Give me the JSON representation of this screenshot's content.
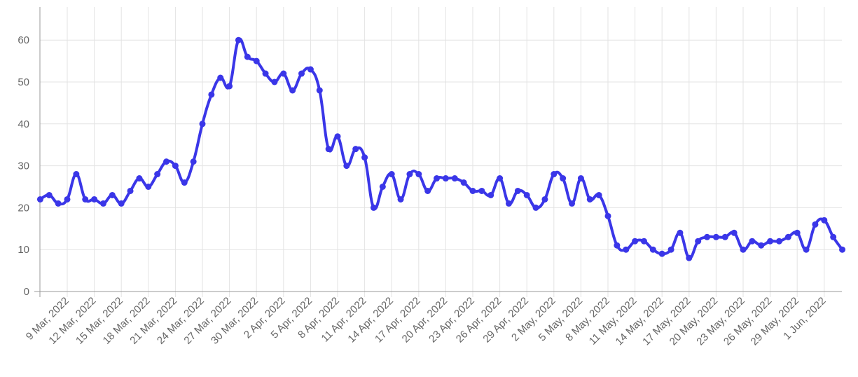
{
  "chart_data": {
    "type": "line",
    "title": "",
    "xlabel": "",
    "ylabel": "",
    "ylim": [
      0,
      65
    ],
    "grid": true,
    "legend": "none",
    "y_ticks": [
      0,
      10,
      20,
      30,
      40,
      50,
      60
    ],
    "x_tick_labels": [
      "9 Mar, 2022",
      "12 Mar, 2022",
      "15 Mar, 2022",
      "18 Mar, 2022",
      "21 Mar, 2022",
      "24 Mar, 2022",
      "27 Mar, 2022",
      "30 Mar, 2022",
      "2 Apr, 2022",
      "5 Apr, 2022",
      "8 Apr, 2022",
      "11 Apr, 2022",
      "14 Apr, 2022",
      "17 Apr, 2022",
      "20 Apr, 2022",
      "23 Apr, 2022",
      "26 Apr, 2022",
      "29 Apr, 2022",
      "2 May, 2022",
      "5 May, 2022",
      "8 May, 2022",
      "11 May, 2022",
      "14 May, 2022",
      "17 May, 2022",
      "20 May, 2022",
      "23 May, 2022",
      "26 May, 2022",
      "29 May, 2022",
      "1 Jun, 2022"
    ],
    "x_start": "6 Mar, 2022",
    "x_end": "4 Jun, 2022",
    "line_color": "#3a36e8",
    "series": [
      {
        "name": "",
        "values": [
          22,
          23,
          21,
          22,
          28,
          22,
          22,
          21,
          23,
          21,
          24,
          27,
          25,
          28,
          31,
          30,
          26,
          31,
          40,
          47,
          51,
          49,
          60,
          56,
          55,
          52,
          50,
          52,
          48,
          52,
          53,
          48,
          34,
          37,
          30,
          34,
          32,
          20,
          25,
          28,
          22,
          28,
          28,
          24,
          27,
          27,
          27,
          26,
          24,
          24,
          23,
          27,
          21,
          24,
          23,
          20,
          22,
          28,
          27,
          21,
          27,
          22,
          23,
          18,
          11,
          10,
          12,
          12,
          10,
          9,
          10,
          14,
          8,
          12,
          13,
          13,
          13,
          14,
          10,
          12,
          11,
          12,
          12,
          13,
          14,
          10,
          16,
          17,
          13,
          10
        ]
      }
    ]
  }
}
